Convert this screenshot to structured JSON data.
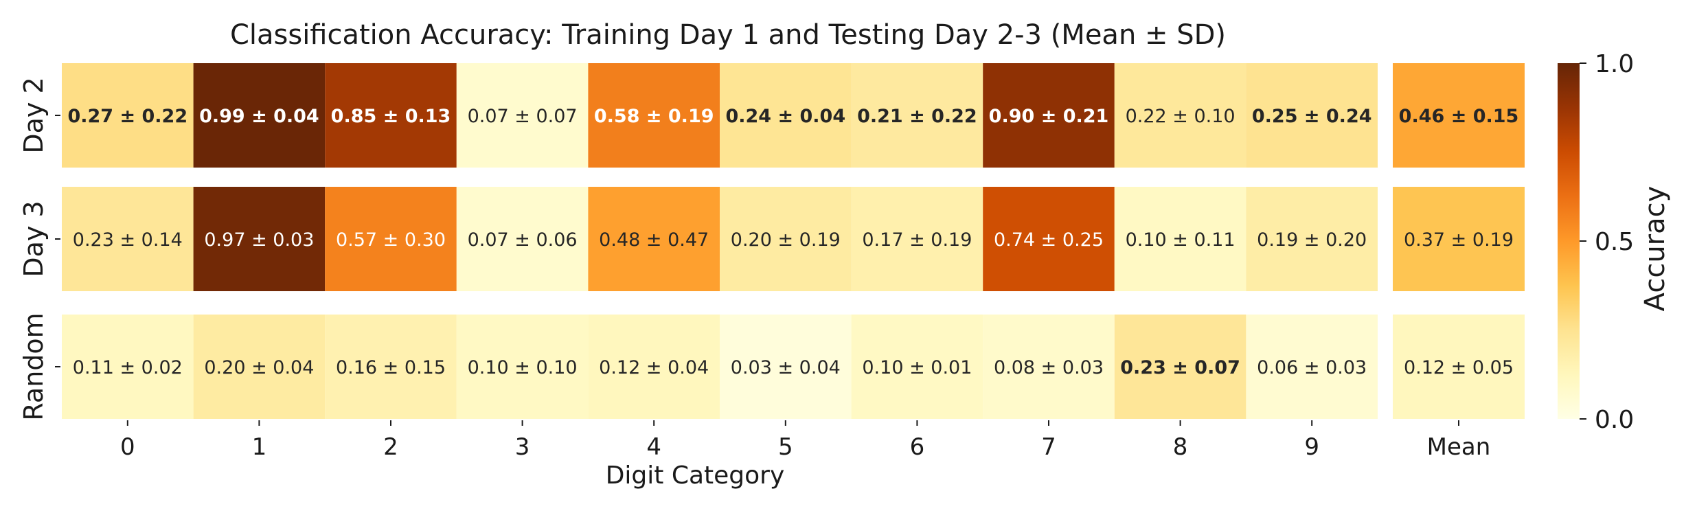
{
  "chart_data": {
    "type": "heatmap",
    "title": "Classification Accuracy: Training Day 1 and Testing Day 2-3  (Mean ± SD)",
    "xlabel": "Digit Category",
    "ylabel": "",
    "rows": [
      "Day 2",
      "Day 3",
      "Random"
    ],
    "columns": [
      "0",
      "1",
      "2",
      "3",
      "4",
      "5",
      "6",
      "7",
      "8",
      "9"
    ],
    "mean_column_label": "Mean",
    "cells": [
      [
        {
          "mean": 0.27,
          "sd": 0.22,
          "label": "0.27 ± 0.22",
          "bold": true
        },
        {
          "mean": 0.99,
          "sd": 0.04,
          "label": "0.99 ± 0.04",
          "bold": true
        },
        {
          "mean": 0.85,
          "sd": 0.13,
          "label": "0.85 ± 0.13",
          "bold": true
        },
        {
          "mean": 0.07,
          "sd": 0.07,
          "label": "0.07 ± 0.07",
          "bold": false
        },
        {
          "mean": 0.58,
          "sd": 0.19,
          "label": "0.58 ± 0.19",
          "bold": true
        },
        {
          "mean": 0.24,
          "sd": 0.04,
          "label": "0.24 ± 0.04",
          "bold": true
        },
        {
          "mean": 0.21,
          "sd": 0.22,
          "label": "0.21 ± 0.22",
          "bold": true
        },
        {
          "mean": 0.9,
          "sd": 0.21,
          "label": "0.90 ± 0.21",
          "bold": true
        },
        {
          "mean": 0.22,
          "sd": 0.1,
          "label": "0.22 ± 0.10",
          "bold": false
        },
        {
          "mean": 0.25,
          "sd": 0.24,
          "label": "0.25 ± 0.24",
          "bold": true
        }
      ],
      [
        {
          "mean": 0.23,
          "sd": 0.14,
          "label": "0.23 ± 0.14",
          "bold": false
        },
        {
          "mean": 0.97,
          "sd": 0.03,
          "label": "0.97 ± 0.03",
          "bold": false
        },
        {
          "mean": 0.57,
          "sd": 0.3,
          "label": "0.57 ± 0.30",
          "bold": false
        },
        {
          "mean": 0.07,
          "sd": 0.06,
          "label": "0.07 ± 0.06",
          "bold": false
        },
        {
          "mean": 0.48,
          "sd": 0.47,
          "label": "0.48 ± 0.47",
          "bold": false
        },
        {
          "mean": 0.2,
          "sd": 0.19,
          "label": "0.20 ± 0.19",
          "bold": false
        },
        {
          "mean": 0.17,
          "sd": 0.19,
          "label": "0.17 ± 0.19",
          "bold": false
        },
        {
          "mean": 0.74,
          "sd": 0.25,
          "label": "0.74 ± 0.25",
          "bold": false
        },
        {
          "mean": 0.1,
          "sd": 0.11,
          "label": "0.10 ± 0.11",
          "bold": false
        },
        {
          "mean": 0.19,
          "sd": 0.2,
          "label": "0.19 ± 0.20",
          "bold": false
        }
      ],
      [
        {
          "mean": 0.11,
          "sd": 0.02,
          "label": "0.11 ± 0.02",
          "bold": false
        },
        {
          "mean": 0.2,
          "sd": 0.04,
          "label": "0.20 ± 0.04",
          "bold": false
        },
        {
          "mean": 0.16,
          "sd": 0.15,
          "label": "0.16 ± 0.15",
          "bold": false
        },
        {
          "mean": 0.1,
          "sd": 0.1,
          "label": "0.10 ± 0.10",
          "bold": false
        },
        {
          "mean": 0.12,
          "sd": 0.04,
          "label": "0.12 ± 0.04",
          "bold": false
        },
        {
          "mean": 0.03,
          "sd": 0.04,
          "label": "0.03 ± 0.04",
          "bold": false
        },
        {
          "mean": 0.1,
          "sd": 0.01,
          "label": "0.10 ± 0.01",
          "bold": false
        },
        {
          "mean": 0.08,
          "sd": 0.03,
          "label": "0.08 ± 0.03",
          "bold": false
        },
        {
          "mean": 0.23,
          "sd": 0.07,
          "label": "0.23 ± 0.07",
          "bold": true
        },
        {
          "mean": 0.06,
          "sd": 0.03,
          "label": "0.06 ± 0.03",
          "bold": false
        }
      ]
    ],
    "mean_cells": [
      {
        "mean": 0.46,
        "sd": 0.15,
        "label": "0.46 ± 0.15",
        "bold": true
      },
      {
        "mean": 0.37,
        "sd": 0.19,
        "label": "0.37 ± 0.19",
        "bold": false
      },
      {
        "mean": 0.12,
        "sd": 0.05,
        "label": "0.12 ± 0.05",
        "bold": false
      }
    ],
    "colorbar": {
      "label": "Accuracy",
      "range": [
        0,
        1
      ],
      "ticks": [
        {
          "value": 0.0,
          "label": "0.0"
        },
        {
          "value": 0.5,
          "label": "0.5"
        },
        {
          "value": 1.0,
          "label": "1.0"
        }
      ],
      "colormap": "YlOrBr",
      "stops": [
        "#ffffe5",
        "#fff7bc",
        "#fee391",
        "#fec44f",
        "#fe9929",
        "#ec7014",
        "#cc4c02",
        "#993404",
        "#662506"
      ]
    }
  }
}
